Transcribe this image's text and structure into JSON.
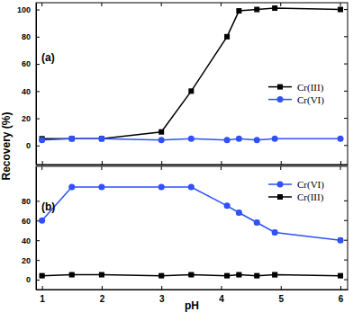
{
  "chart_data": [
    {
      "type": "line",
      "title": "(a)",
      "x": [
        1,
        1.5,
        2,
        3,
        3.5,
        4.1,
        4.3,
        4.6,
        4.9,
        6
      ],
      "xlim": [
        0.9,
        6.12
      ],
      "xticks": [
        1,
        2,
        3,
        4,
        5,
        6
      ],
      "ylim": [
        -14,
        105
      ],
      "yticks": [
        0,
        20,
        40,
        60,
        80,
        100
      ],
      "tick_labels": "y",
      "legend": "right",
      "series": [
        {
          "name": "Cr(III)",
          "color": "#000000",
          "marker": "square",
          "values": [
            5,
            5,
            5,
            10,
            40,
            80,
            99,
            100,
            101,
            100
          ]
        },
        {
          "name": "Cr(VI)",
          "color": "#3050f8",
          "marker": "circle",
          "values": [
            4,
            5,
            5,
            4,
            5,
            4,
            5,
            4,
            5,
            5
          ]
        }
      ]
    },
    {
      "type": "line",
      "title": "(b)",
      "x": [
        1,
        1.5,
        2,
        3,
        3.5,
        4.1,
        4.3,
        4.6,
        4.9,
        6
      ],
      "xlim": [
        0.9,
        6.12
      ],
      "xticks": [
        1,
        2,
        3,
        4,
        5,
        6
      ],
      "ylim": [
        -10,
        115
      ],
      "yticks": [
        0,
        20,
        40,
        60,
        80
      ],
      "x_label": "pH",
      "y_label": "Recovery (%)",
      "legend": "upper right",
      "series": [
        {
          "name": "Cr(VI)",
          "color": "#3050f8",
          "marker": "circle",
          "values": [
            60,
            94,
            94,
            94,
            94,
            75,
            68,
            58,
            48,
            40
          ],
          "errors": [
            1,
            1,
            1,
            1,
            1,
            1,
            2,
            2,
            2,
            2
          ]
        },
        {
          "name": "Cr(III)",
          "color": "#000000",
          "marker": "square",
          "values": [
            4,
            5,
            5,
            4,
            5,
            4,
            5,
            4,
            5,
            4
          ],
          "errors": [
            1,
            1,
            1,
            1,
            1,
            1,
            1,
            1,
            2,
            1
          ]
        }
      ]
    }
  ]
}
